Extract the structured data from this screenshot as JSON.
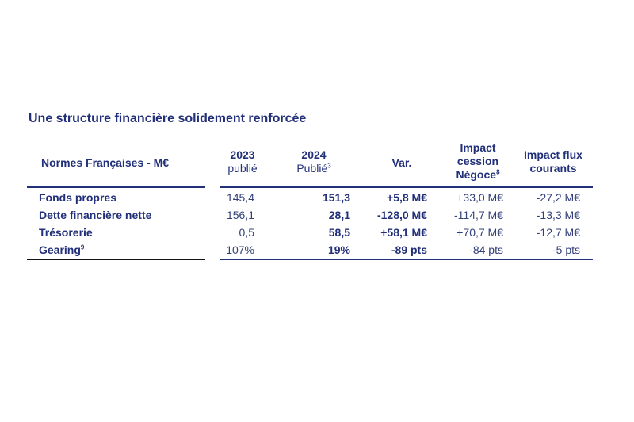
{
  "title": "Une structure financière solidement renforcée",
  "headers": {
    "col0": "Normes Françaises - M€",
    "col1_line1": "2023",
    "col1_line2": "publié",
    "col2_line1": "2024",
    "col2_line2": "Publié",
    "col2_sup": "3",
    "col3": "Var.",
    "col4_line1": "Impact",
    "col4_line2": "cession",
    "col4_line3": "Négoce",
    "col4_sup": "8",
    "col5_line1": "Impact flux",
    "col5_line2": "courants"
  },
  "rows": [
    {
      "label": "Fonds propres",
      "sup": "",
      "v2023": "145,4",
      "v2024": "151,3",
      "var": "+5,8 M€",
      "impact": "+33,0 M€",
      "flux": "-27,2 M€"
    },
    {
      "label": "Dette financière nette",
      "sup": "",
      "v2023": "156,1",
      "v2024": "28,1",
      "var": "-128,0 M€",
      "impact": "-114,7 M€",
      "flux": "-13,3 M€"
    },
    {
      "label": "Trésorerie",
      "sup": "",
      "v2023": "0,5",
      "v2024": "58,5",
      "var": "+58,1 M€",
      "impact": "+70,7 M€",
      "flux": "-12,7 M€"
    },
    {
      "label": "Gearing",
      "sup": "9",
      "v2023": "107%",
      "v2024": "19%",
      "var": "-89 pts",
      "impact": "-84 pts",
      "flux": "-5 pts"
    }
  ]
}
